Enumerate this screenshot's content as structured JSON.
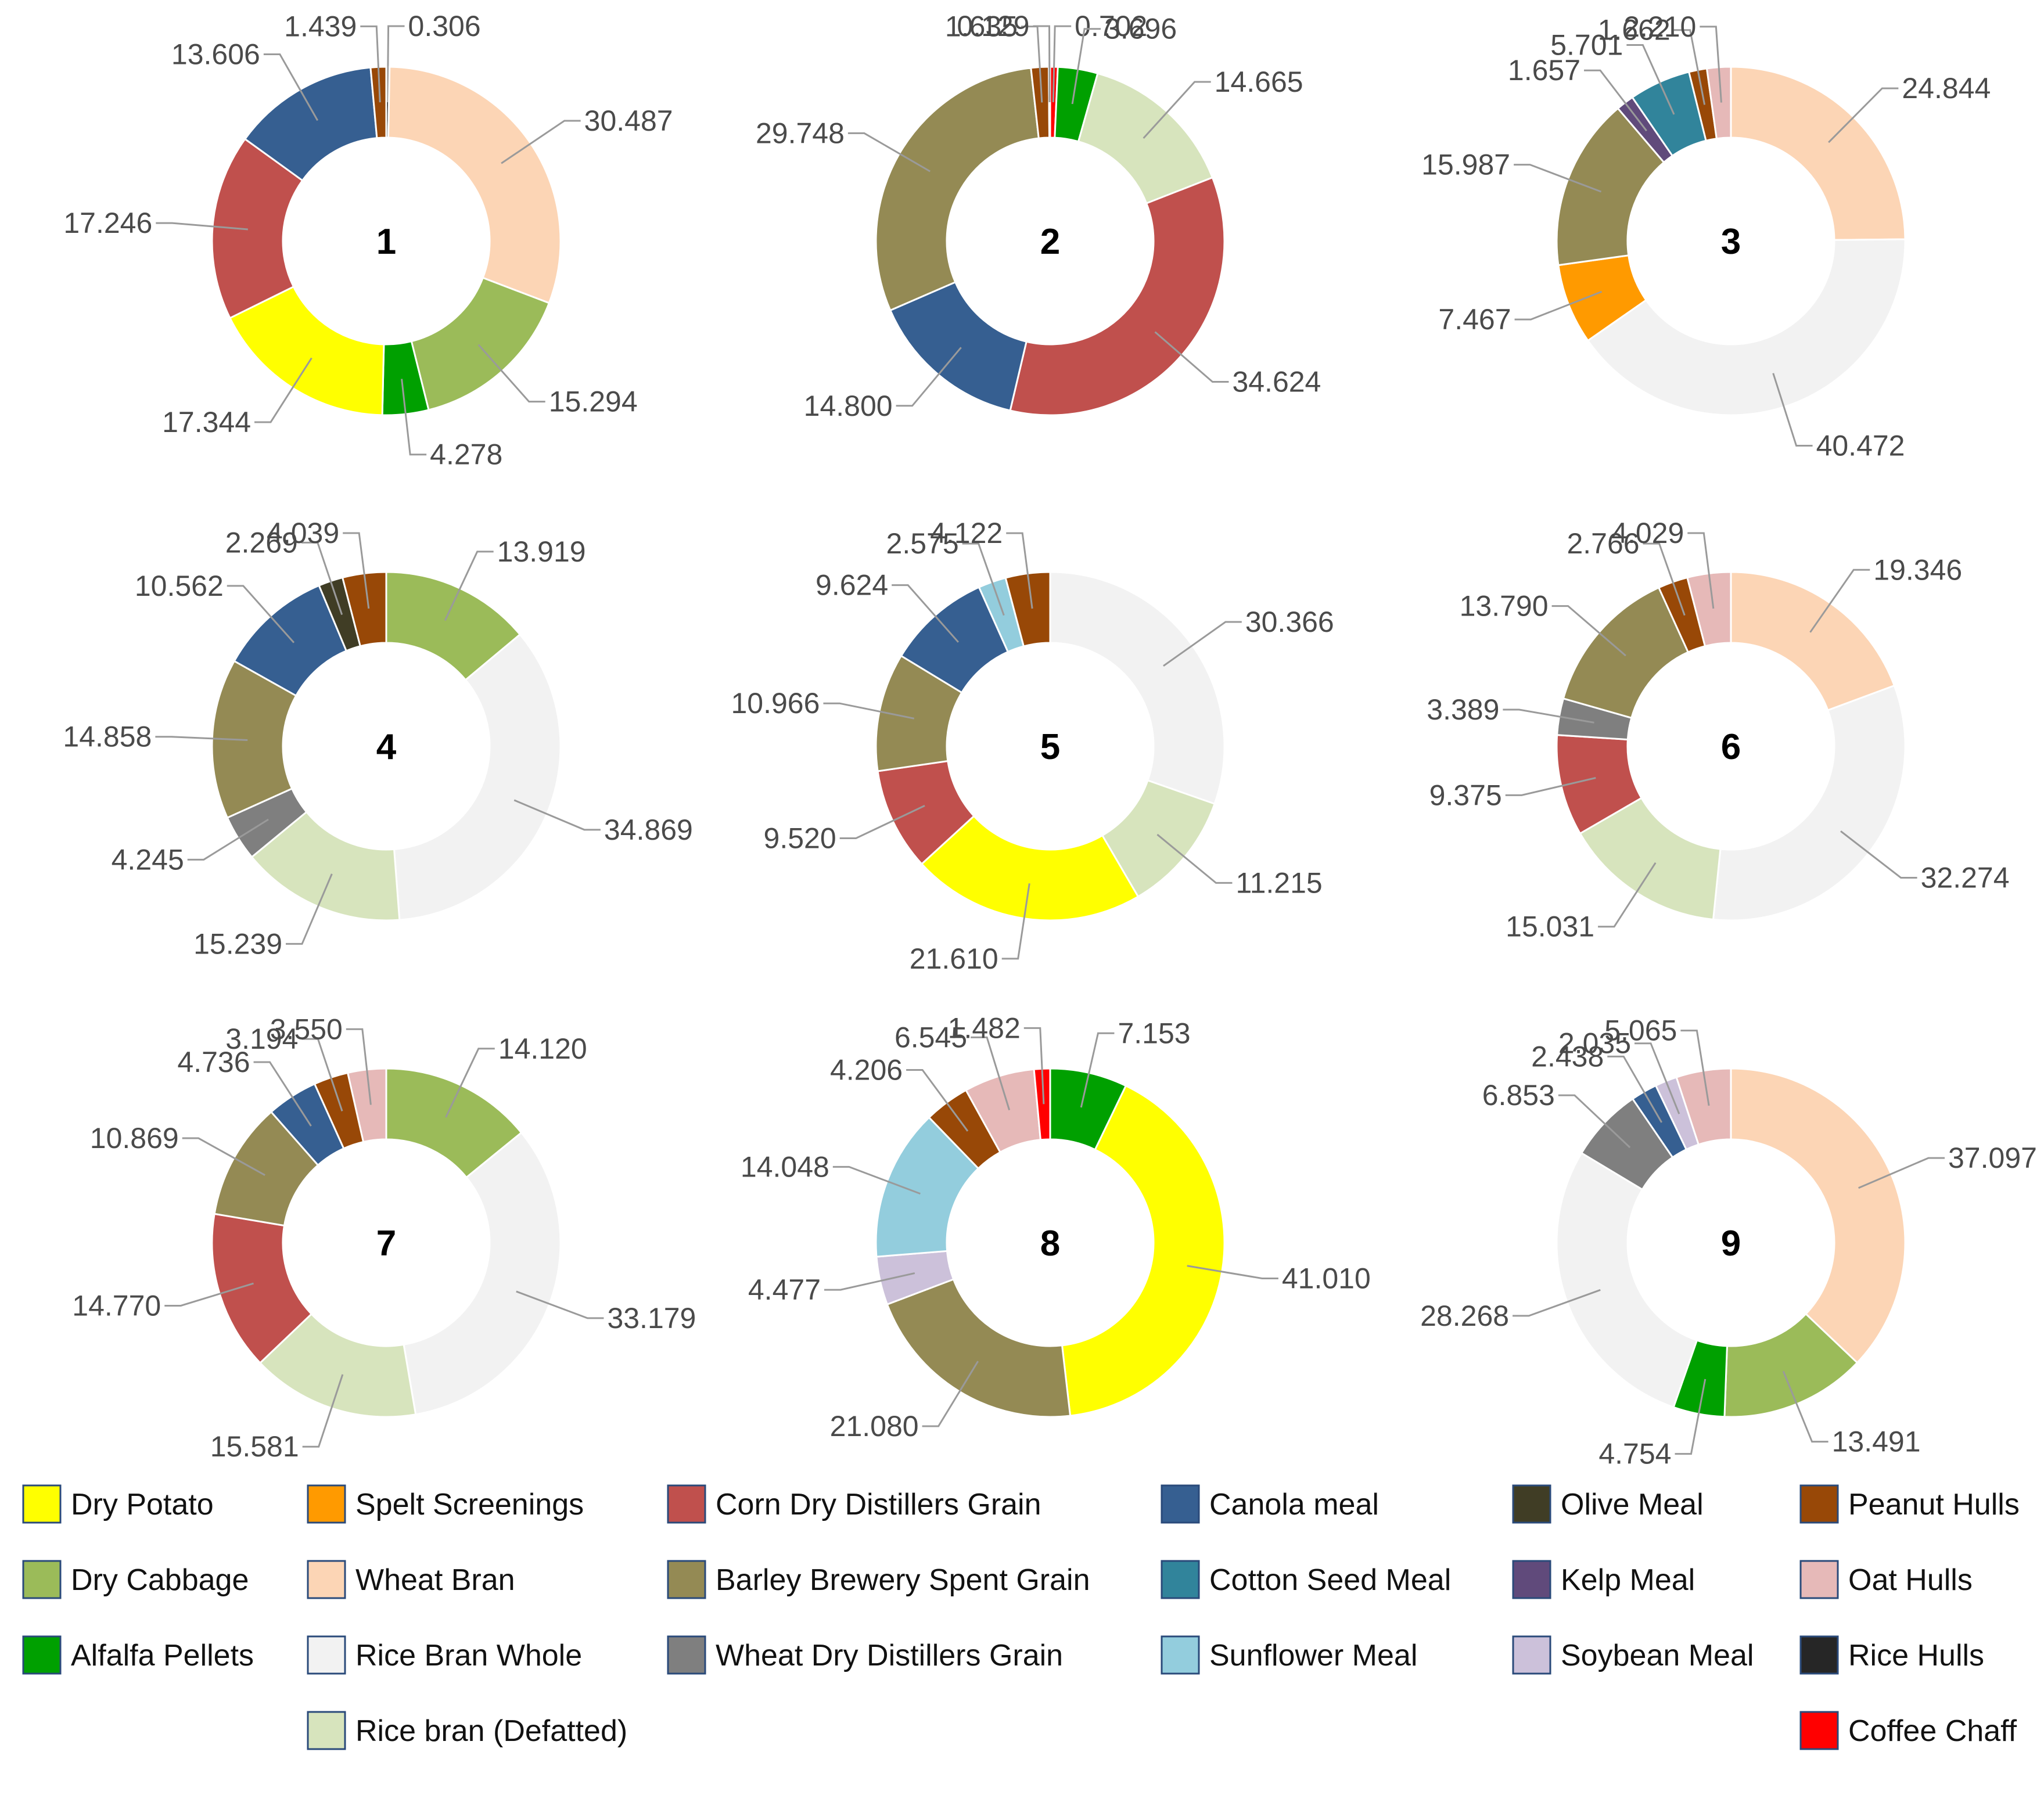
{
  "chart_data": {
    "type": "donut",
    "categories": [
      {
        "name": "Dry Potato",
        "color": "#ffff00"
      },
      {
        "name": "Spelt Screenings",
        "color": "#ff9a00"
      },
      {
        "name": "Corn Dry Distillers Grain",
        "color": "#c0504d"
      },
      {
        "name": "Canola meal",
        "color": "#365f91"
      },
      {
        "name": "Olive Meal",
        "color": "#403d25"
      },
      {
        "name": "Peanut Hulls",
        "color": "#984807"
      },
      {
        "name": "Dry Cabbage",
        "color": "#9bbb59"
      },
      {
        "name": "Wheat Bran",
        "color": "#fcd5b5"
      },
      {
        "name": "Barley Brewery Spent Grain",
        "color": "#948a54"
      },
      {
        "name": "Cotton Seed Meal",
        "color": "#31849b"
      },
      {
        "name": "Kelp Meal",
        "color": "#604a7b"
      },
      {
        "name": "Oat Hulls",
        "color": "#e6b9b8"
      },
      {
        "name": "Alfalfa Pellets",
        "color": "#00a000"
      },
      {
        "name": "Rice Bran Whole",
        "color": "#f2f2f2"
      },
      {
        "name": "Wheat Dry Distillers Grain",
        "color": "#7f7f7f"
      },
      {
        "name": "Sunflower Meal",
        "color": "#93cddd"
      },
      {
        "name": "Soybean Meal",
        "color": "#ccc1da"
      },
      {
        "name": "Rice Hulls",
        "color": "#262626"
      },
      {
        "name": "Rice bran (Defatted)",
        "color": "#d7e4bd"
      },
      {
        "name": "Coffee Chaff",
        "color": "#ff0000"
      }
    ],
    "charts": [
      {
        "label": "1",
        "slices": [
          {
            "category": "Rice Hulls",
            "value": 0.306,
            "label": "0.306"
          },
          {
            "category": "Wheat Bran",
            "value": 30.487,
            "label": "30.487"
          },
          {
            "category": "Dry Cabbage",
            "value": 15.294,
            "label": "15.294"
          },
          {
            "category": "Alfalfa Pellets",
            "value": 4.278,
            "label": "4.278"
          },
          {
            "category": "Dry Potato",
            "value": 17.344,
            "label": "17.344"
          },
          {
            "category": "Corn Dry Distillers Grain",
            "value": 17.246,
            "label": "17.246"
          },
          {
            "category": "Canola meal",
            "value": 13.606,
            "label": "13.606"
          },
          {
            "category": "Peanut Hulls",
            "value": 1.439,
            "label": "1.439"
          }
        ]
      },
      {
        "label": "2",
        "slices": [
          {
            "category": "Coffee Chaff",
            "value": 0.702,
            "label": "0.702"
          },
          {
            "category": "Alfalfa Pellets",
            "value": 3.696,
            "label": "3.696"
          },
          {
            "category": "Rice bran (Defatted)",
            "value": 14.665,
            "label": "14.665"
          },
          {
            "category": "Corn Dry Distillers Grain",
            "value": 34.624,
            "label": "34.624"
          },
          {
            "category": "Canola meal",
            "value": 14.8,
            "label": "14.800"
          },
          {
            "category": "Barley Brewery Spent Grain",
            "value": 29.748,
            "label": "29.748"
          },
          {
            "category": "Peanut Hulls",
            "value": 1.635,
            "label": "1.635"
          },
          {
            "category": "Oat Hulls",
            "value": 0.129,
            "label": "0.129"
          }
        ]
      },
      {
        "label": "3",
        "slices": [
          {
            "category": "Wheat Bran",
            "value": 24.844,
            "label": "24.844"
          },
          {
            "category": "Rice Bran Whole",
            "value": 40.472,
            "label": "40.472"
          },
          {
            "category": "Spelt Screenings",
            "value": 7.467,
            "label": "7.467"
          },
          {
            "category": "Barley Brewery Spent Grain",
            "value": 15.987,
            "label": "15.987"
          },
          {
            "category": "Kelp Meal",
            "value": 1.657,
            "label": "1.657"
          },
          {
            "category": "Cotton Seed Meal",
            "value": 5.701,
            "label": "5.701"
          },
          {
            "category": "Peanut Hulls",
            "value": 1.662,
            "label": "1.662"
          },
          {
            "category": "Oat Hulls",
            "value": 2.21,
            "label": "2.210"
          }
        ]
      },
      {
        "label": "4",
        "slices": [
          {
            "category": "Dry Cabbage",
            "value": 13.919,
            "label": "13.919"
          },
          {
            "category": "Rice Bran Whole",
            "value": 34.869,
            "label": "34.869"
          },
          {
            "category": "Rice bran (Defatted)",
            "value": 15.239,
            "label": "15.239"
          },
          {
            "category": "Wheat Dry Distillers Grain",
            "value": 4.245,
            "label": "4.245"
          },
          {
            "category": "Barley Brewery Spent Grain",
            "value": 14.858,
            "label": "14.858"
          },
          {
            "category": "Canola meal",
            "value": 10.562,
            "label": "10.562"
          },
          {
            "category": "Olive Meal",
            "value": 2.269,
            "label": "2.269"
          },
          {
            "category": "Peanut Hulls",
            "value": 4.039,
            "label": "4.039"
          }
        ]
      },
      {
        "label": "5",
        "slices": [
          {
            "category": "Rice Bran Whole",
            "value": 30.366,
            "label": "30.366"
          },
          {
            "category": "Rice bran (Defatted)",
            "value": 11.215,
            "label": "11.215"
          },
          {
            "category": "Dry Potato",
            "value": 21.61,
            "label": "21.610"
          },
          {
            "category": "Corn Dry Distillers Grain",
            "value": 9.52,
            "label": "9.520"
          },
          {
            "category": "Barley Brewery Spent Grain",
            "value": 10.966,
            "label": "10.966"
          },
          {
            "category": "Canola meal",
            "value": 9.624,
            "label": "9.624"
          },
          {
            "category": "Sunflower Meal",
            "value": 2.575,
            "label": "2.575"
          },
          {
            "category": "Peanut Hulls",
            "value": 4.122,
            "label": "4.122"
          }
        ]
      },
      {
        "label": "6",
        "slices": [
          {
            "category": "Wheat Bran",
            "value": 19.346,
            "label": "19.346"
          },
          {
            "category": "Rice Bran Whole",
            "value": 32.274,
            "label": "32.274"
          },
          {
            "category": "Rice bran (Defatted)",
            "value": 15.031,
            "label": "15.031"
          },
          {
            "category": "Corn Dry Distillers Grain",
            "value": 9.375,
            "label": "9.375"
          },
          {
            "category": "Wheat Dry Distillers Grain",
            "value": 3.389,
            "label": "3.389"
          },
          {
            "category": "Barley Brewery Spent Grain",
            "value": 13.79,
            "label": "13.790"
          },
          {
            "category": "Peanut Hulls",
            "value": 2.766,
            "label": "2.766"
          },
          {
            "category": "Oat Hulls",
            "value": 4.029,
            "label": "4.029"
          }
        ]
      },
      {
        "label": "7",
        "slices": [
          {
            "category": "Dry Cabbage",
            "value": 14.12,
            "label": "14.120"
          },
          {
            "category": "Rice Bran Whole",
            "value": 33.179,
            "label": "33.179"
          },
          {
            "category": "Rice bran (Defatted)",
            "value": 15.581,
            "label": "15.581"
          },
          {
            "category": "Corn Dry Distillers Grain",
            "value": 14.77,
            "label": "14.770"
          },
          {
            "category": "Barley Brewery Spent Grain",
            "value": 10.869,
            "label": "10.869"
          },
          {
            "category": "Canola meal",
            "value": 4.736,
            "label": "4.736"
          },
          {
            "category": "Peanut Hulls",
            "value": 3.194,
            "label": "3.194"
          },
          {
            "category": "Oat Hulls",
            "value": 3.55,
            "label": "3.550"
          }
        ]
      },
      {
        "label": "8",
        "slices": [
          {
            "category": "Alfalfa Pellets",
            "value": 7.153,
            "label": "7.153"
          },
          {
            "category": "Dry Potato",
            "value": 41.01,
            "label": "41.010"
          },
          {
            "category": "Barley Brewery Spent Grain",
            "value": 21.08,
            "label": "21.080"
          },
          {
            "category": "Soybean Meal",
            "value": 4.477,
            "label": "4.477"
          },
          {
            "category": "Sunflower Meal",
            "value": 14.048,
            "label": "14.048"
          },
          {
            "category": "Peanut Hulls",
            "value": 4.206,
            "label": "4.206"
          },
          {
            "category": "Oat Hulls",
            "value": 6.545,
            "label": "6.545"
          },
          {
            "category": "Coffee Chaff",
            "value": 1.482,
            "label": "1.482"
          }
        ]
      },
      {
        "label": "9",
        "slices": [
          {
            "category": "Wheat Bran",
            "value": 37.097,
            "label": "37.097"
          },
          {
            "category": "Dry Cabbage",
            "value": 13.491,
            "label": "13.491"
          },
          {
            "category": "Alfalfa Pellets",
            "value": 4.754,
            "label": "4.754"
          },
          {
            "category": "Rice Bran Whole",
            "value": 28.268,
            "label": "28.268"
          },
          {
            "category": "Wheat Dry Distillers Grain",
            "value": 6.853,
            "label": "6.853"
          },
          {
            "category": "Canola meal",
            "value": 2.438,
            "label": "2.438"
          },
          {
            "category": "Soybean Meal",
            "value": 2.035,
            "label": "2.035"
          },
          {
            "category": "Oat Hulls",
            "value": 5.065,
            "label": "5.065"
          }
        ]
      }
    ]
  }
}
